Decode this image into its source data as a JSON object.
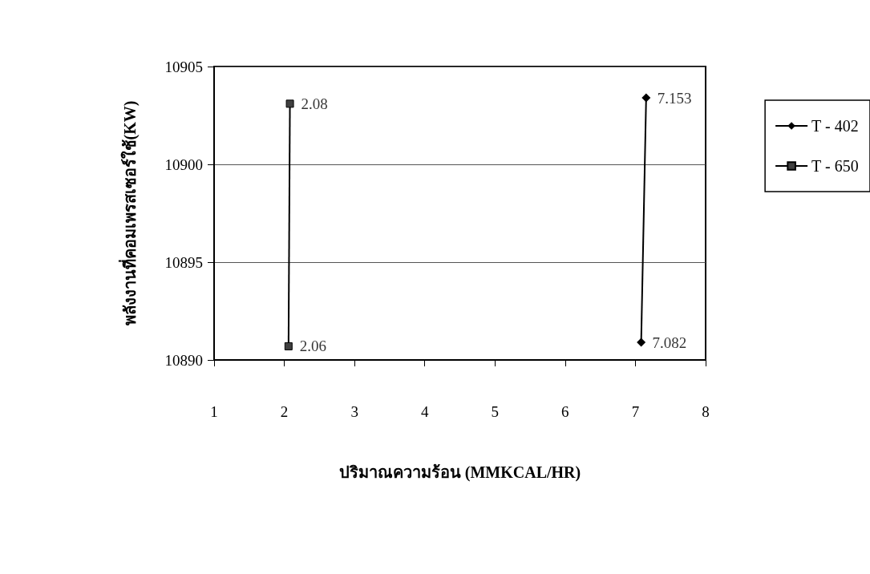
{
  "chart_data": {
    "type": "line",
    "xlabel": "ปริมาณความร้อน (MMKCAL/HR)",
    "ylabel": "พลังงานที่คอมเพรสเซอร์ใช้(KW)",
    "xlim": [
      1,
      8
    ],
    "xticks": [
      1,
      2,
      3,
      4,
      5,
      6,
      7,
      8
    ],
    "ylim": [
      10890,
      10905
    ],
    "yticks": [
      10890,
      10895,
      10900,
      10905
    ],
    "grid": "y",
    "legend": "right",
    "line_style": "solid",
    "series": [
      {
        "name": "T - 402",
        "color": "#000000",
        "marker": "diamond",
        "x": [
          7.082,
          7.153
        ],
        "values": [
          10890.9,
          10903.4
        ]
      },
      {
        "name": "T - 650",
        "color": "#404040",
        "marker": "square",
        "x": [
          2.06,
          2.08
        ],
        "values": [
          10890.7,
          10903.1
        ]
      }
    ],
    "annotations": [
      {
        "text": "7.082",
        "x": 7.082,
        "y": 10890.9
      },
      {
        "text": "7.153",
        "x": 7.153,
        "y": 10903.4
      },
      {
        "text": "2.06",
        "x": 2.06,
        "y": 10890.7
      },
      {
        "text": "2.08",
        "x": 2.08,
        "y": 10903.1
      }
    ]
  }
}
